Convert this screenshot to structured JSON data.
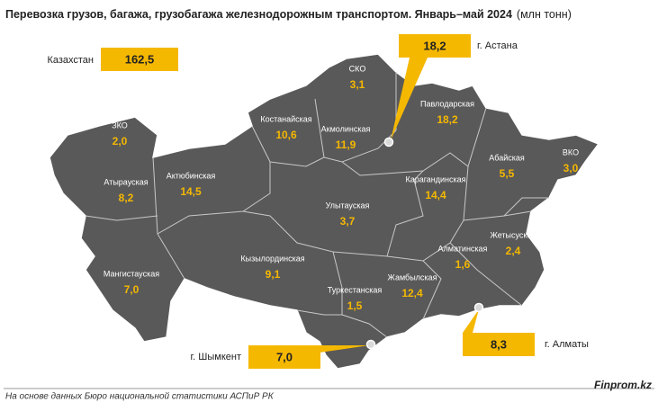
{
  "header": {
    "title": "Перевозка грузов, багажа, грузобагажа железнодорожным транспортом. Январь–май 2024",
    "unit": "(млн тонн)"
  },
  "total": {
    "label": "Казахстан",
    "value": "162,5"
  },
  "regions": [
    {
      "name": "СКО",
      "value": "3,1"
    },
    {
      "name": "Павлодарская",
      "value": "18,2"
    },
    {
      "name": "Костанайская",
      "value": "10,6"
    },
    {
      "name": "Акмолинская",
      "value": "11,9"
    },
    {
      "name": "ЗКО",
      "value": "2,0"
    },
    {
      "name": "Абайская",
      "value": "5,5"
    },
    {
      "name": "ВКО",
      "value": "3,0"
    },
    {
      "name": "Атырауская",
      "value": "8,2"
    },
    {
      "name": "Актюбинская",
      "value": "14,5"
    },
    {
      "name": "Карагандинская",
      "value": "14,4"
    },
    {
      "name": "Улытауская",
      "value": "3,7"
    },
    {
      "name": "Жетысуская",
      "value": "2,4"
    },
    {
      "name": "Алматинская",
      "value": "1,6"
    },
    {
      "name": "Кызылординская",
      "value": "9,1"
    },
    {
      "name": "Мангистауская",
      "value": "7,0"
    },
    {
      "name": "Жамбылская",
      "value": "12,4"
    },
    {
      "name": "Туркестанская",
      "value": "1,5"
    }
  ],
  "cities": [
    {
      "label": "г. Астана",
      "value": "18,2"
    },
    {
      "label": "г. Шымкент",
      "value": "7,0"
    },
    {
      "label": "г. Алматы",
      "value": "8,3"
    }
  ],
  "footer": {
    "source": "На основе данных Бюро национальной статистики АСПиР РК",
    "brand": "Finprom.kz"
  }
}
